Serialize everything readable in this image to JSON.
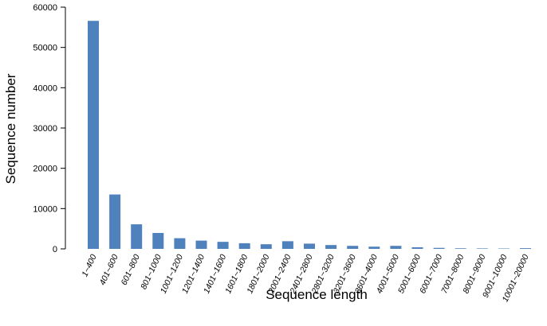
{
  "chart_data": {
    "type": "bar",
    "title": "",
    "xlabel": "Sequence length",
    "ylabel": "Sequence number",
    "ylim": [
      0,
      60000
    ],
    "yticks": [
      0,
      10000,
      20000,
      30000,
      40000,
      50000,
      60000
    ],
    "grid": false,
    "bar_color": "#4f81bd",
    "categories": [
      "1~400",
      "401~600",
      "601~800",
      "801~1000",
      "1001~1200",
      "1201~1400",
      "1401~1600",
      "1601~1800",
      "1801~2000",
      "2001~2400",
      "2401~2800",
      "2801~3200",
      "3201~3600",
      "3601~4000",
      "4001~5000",
      "5001~6000",
      "6001~7000",
      "7001~8000",
      "8001~9000",
      "9001~10000",
      "10001~20000"
    ],
    "values": [
      56600,
      13500,
      6100,
      3950,
      2650,
      2050,
      1750,
      1400,
      1150,
      1900,
      1300,
      950,
      750,
      550,
      750,
      400,
      250,
      150,
      120,
      100,
      180
    ]
  }
}
